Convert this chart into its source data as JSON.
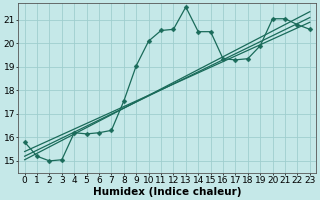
{
  "xlabel": "Humidex (Indice chaleur)",
  "xlim": [
    -0.5,
    23.5
  ],
  "ylim": [
    14.5,
    21.7
  ],
  "bg_color": "#c5e8e8",
  "grid_color": "#9fcece",
  "line_color": "#1a6b5a",
  "line_width": 0.9,
  "marker": "D",
  "marker_size": 2.5,
  "main_series": [
    15.8,
    15.2,
    15.0,
    15.05,
    16.2,
    16.15,
    16.2,
    16.3,
    17.55,
    19.05,
    20.1,
    20.55,
    20.6,
    21.55,
    20.5,
    20.5,
    19.35,
    19.3,
    19.35,
    19.9,
    21.05,
    21.05,
    20.8,
    20.6
  ],
  "straight_lines": [
    {
      "x0": 0,
      "y0": 15.05,
      "x1": 23,
      "y1": 21.35
    },
    {
      "x0": 0,
      "y0": 15.2,
      "x1": 23,
      "y1": 21.1
    },
    {
      "x0": 0,
      "y0": 15.4,
      "x1": 23,
      "y1": 20.9
    }
  ],
  "xticks": [
    0,
    1,
    2,
    3,
    4,
    5,
    6,
    7,
    8,
    9,
    10,
    11,
    12,
    13,
    14,
    15,
    16,
    17,
    18,
    19,
    20,
    21,
    22,
    23
  ],
  "yticks": [
    15,
    16,
    17,
    18,
    19,
    20,
    21
  ],
  "font_size": 6.5,
  "xlabel_fontsize": 7.5
}
